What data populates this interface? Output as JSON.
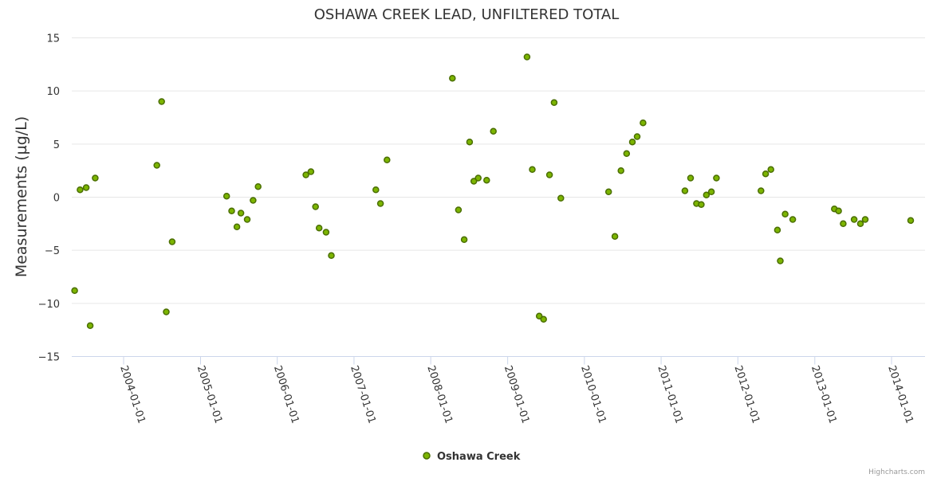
{
  "chart_data": {
    "type": "scatter",
    "title": "OSHAWA CREEK LEAD, UNFILTERED TOTAL",
    "ylabel": "Measurements (µg/L)",
    "xlabel": "",
    "ylim": [
      -15,
      15
    ],
    "yticks": [
      -15,
      -10,
      -5,
      0,
      5,
      10,
      15
    ],
    "xlim": [
      "2003-05-01",
      "2014-05-01"
    ],
    "xticks": [
      "2004-01-01",
      "2005-01-01",
      "2006-01-01",
      "2007-01-01",
      "2008-01-01",
      "2009-01-01",
      "2010-01-01",
      "2011-01-01",
      "2012-01-01",
      "2013-01-01",
      "2014-01-01"
    ],
    "grid": true,
    "legend_position": "bottom-center",
    "colors": {
      "fill": "#7cb500",
      "stroke": "#4a6e00"
    },
    "series": [
      {
        "name": "Oshawa Creek",
        "points": [
          [
            "2003-05-13",
            -8.8
          ],
          [
            "2003-06-08",
            0.7
          ],
          [
            "2003-07-07",
            0.9
          ],
          [
            "2003-07-26",
            -12.1
          ],
          [
            "2003-08-19",
            1.8
          ],
          [
            "2004-06-07",
            3.0
          ],
          [
            "2004-06-30",
            9.0
          ],
          [
            "2004-07-22",
            -10.8
          ],
          [
            "2004-08-19",
            -4.2
          ],
          [
            "2005-05-05",
            0.1
          ],
          [
            "2005-05-29",
            -1.3
          ],
          [
            "2005-06-23",
            -2.8
          ],
          [
            "2005-07-12",
            -1.5
          ],
          [
            "2005-08-11",
            -2.1
          ],
          [
            "2005-09-08",
            -0.3
          ],
          [
            "2005-10-02",
            1.0
          ],
          [
            "2006-05-17",
            2.1
          ],
          [
            "2006-06-10",
            2.4
          ],
          [
            "2006-07-02",
            -0.9
          ],
          [
            "2006-07-19",
            -2.9
          ],
          [
            "2006-08-21",
            -3.3
          ],
          [
            "2006-09-15",
            -5.5
          ],
          [
            "2007-04-15",
            0.7
          ],
          [
            "2007-05-07",
            -0.6
          ],
          [
            "2007-06-07",
            3.5
          ],
          [
            "2008-04-13",
            11.2
          ],
          [
            "2008-05-12",
            -1.2
          ],
          [
            "2008-06-08",
            -4.0
          ],
          [
            "2008-07-04",
            5.2
          ],
          [
            "2008-07-24",
            1.5
          ],
          [
            "2008-08-14",
            1.8
          ],
          [
            "2008-09-23",
            1.6
          ],
          [
            "2008-10-25",
            6.2
          ],
          [
            "2009-04-03",
            13.2
          ],
          [
            "2009-04-28",
            2.6
          ],
          [
            "2009-05-31",
            -11.2
          ],
          [
            "2009-06-21",
            -11.5
          ],
          [
            "2009-07-19",
            2.1
          ],
          [
            "2009-08-10",
            8.9
          ],
          [
            "2009-09-11",
            -0.1
          ],
          [
            "2010-04-26",
            0.5
          ],
          [
            "2010-05-26",
            -3.7
          ],
          [
            "2010-06-24",
            2.5
          ],
          [
            "2010-07-21",
            4.1
          ],
          [
            "2010-08-17",
            5.2
          ],
          [
            "2010-09-09",
            5.7
          ],
          [
            "2010-10-07",
            7.0
          ],
          [
            "2011-04-24",
            0.6
          ],
          [
            "2011-05-21",
            1.8
          ],
          [
            "2011-06-18",
            -0.6
          ],
          [
            "2011-07-11",
            -0.7
          ],
          [
            "2011-08-04",
            0.2
          ],
          [
            "2011-08-28",
            0.5
          ],
          [
            "2011-09-21",
            1.8
          ],
          [
            "2012-04-20",
            0.6
          ],
          [
            "2012-05-12",
            2.2
          ],
          [
            "2012-06-06",
            2.6
          ],
          [
            "2012-07-07",
            -3.1
          ],
          [
            "2012-07-21",
            -6.0
          ],
          [
            "2012-08-13",
            -1.6
          ],
          [
            "2012-09-18",
            -2.1
          ],
          [
            "2013-04-04",
            -1.1
          ],
          [
            "2013-04-24",
            -1.3
          ],
          [
            "2013-05-16",
            -2.5
          ],
          [
            "2013-07-07",
            -2.1
          ],
          [
            "2013-08-06",
            -2.5
          ],
          [
            "2013-08-29",
            -2.1
          ],
          [
            "2014-04-02",
            -2.2
          ]
        ]
      }
    ]
  },
  "credits": "Highcharts.com"
}
